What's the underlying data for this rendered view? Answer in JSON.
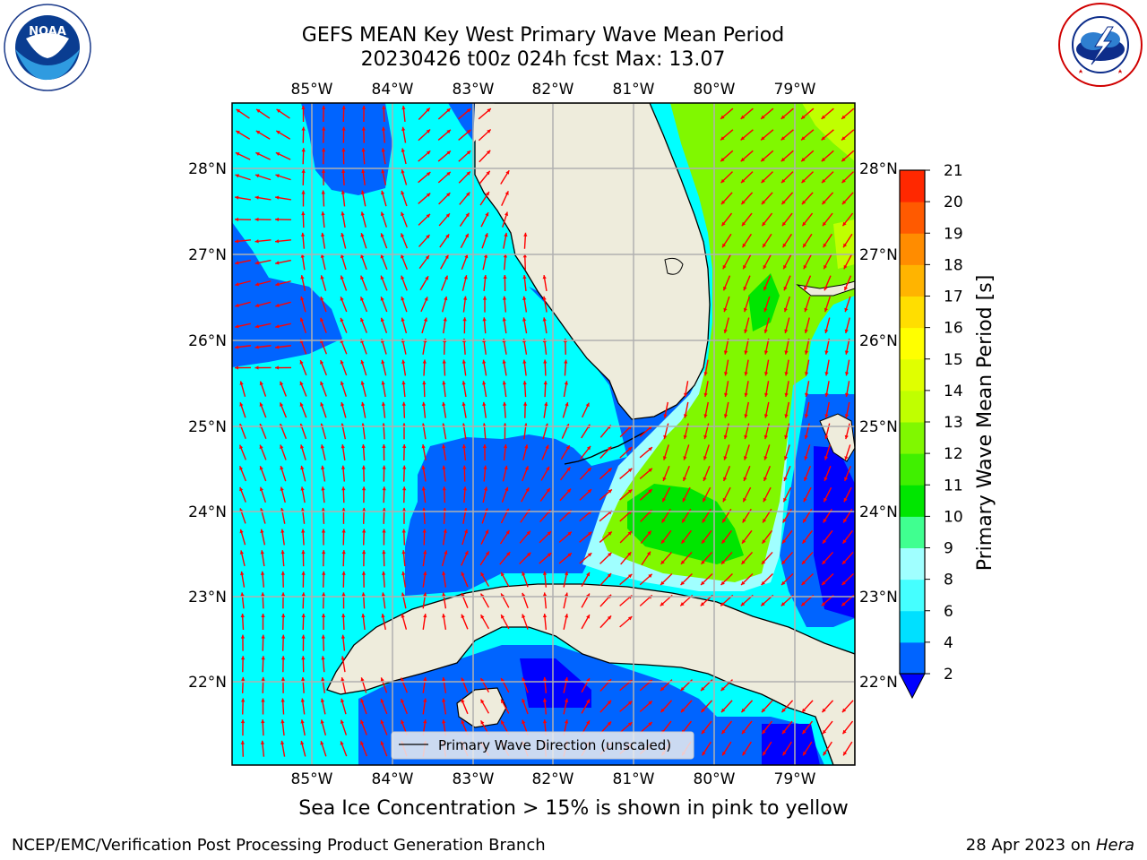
{
  "title": {
    "line1": "GEFS MEAN Key West Primary Wave Mean Period",
    "line2": "20230426 t00z 024h fcst   Max: 13.07"
  },
  "map": {
    "lon_labels": [
      "85°W",
      "84°W",
      "83°W",
      "82°W",
      "81°W",
      "80°W",
      "79°W"
    ],
    "lat_labels": [
      "28°N",
      "27°N",
      "26°N",
      "25°N",
      "24°N",
      "23°N",
      "22°N"
    ],
    "legend_label": "Primary Wave Direction (unscaled)",
    "arrow_color": "#ff0000",
    "land_color": "#eeecdc"
  },
  "colorbar": {
    "label": "Primary Wave Mean Period [s]",
    "ticks": [
      "2",
      "4",
      "6",
      "8",
      "9",
      "10",
      "11",
      "12",
      "13",
      "14",
      "15",
      "16",
      "17",
      "18",
      "19",
      "20",
      "21"
    ],
    "colors": [
      "#0064ff",
      "#00e0ff",
      "#45ffff",
      "#a0ffff",
      "#40ff90",
      "#00e600",
      "#40f000",
      "#80f800",
      "#c0ff00",
      "#e0ff00",
      "#ffff00",
      "#ffde00",
      "#ffb400",
      "#ff8c00",
      "#ff5a00",
      "#ff2800",
      "#ff0000"
    ],
    "under_color": "#0000ff"
  },
  "footnote": "Sea Ice Concentration > 15% is shown in pink to yellow",
  "footer": {
    "branch": "NCEP/EMC/Verification Post Processing Product Generation Branch",
    "date": "28 Apr 2023 on ",
    "machine": "Hera"
  },
  "logos": {
    "noaa_text": "NOAA",
    "nws_text": "NATIONAL WEATHER SERVICE"
  }
}
